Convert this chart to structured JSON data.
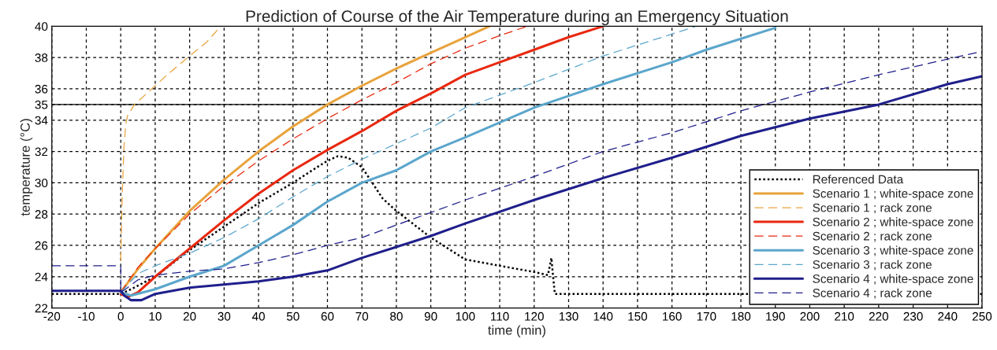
{
  "chart_data": {
    "type": "line",
    "title": "Prediction of Course of the Air Temperature during an Emergency Situation",
    "xlabel": "time (min)",
    "ylabel": "temperature (°C)",
    "xlim": [
      -20,
      250
    ],
    "xticks": [
      -20,
      -10,
      0,
      10,
      20,
      30,
      40,
      50,
      60,
      70,
      80,
      90,
      100,
      110,
      120,
      130,
      140,
      150,
      160,
      170,
      180,
      190,
      200,
      210,
      220,
      230,
      240,
      250
    ],
    "ylim": [
      22,
      40
    ],
    "yticks": [
      22,
      24,
      26,
      28,
      30,
      32,
      34,
      35,
      36,
      38,
      40
    ],
    "grid": true,
    "legend": "bottom right",
    "ref_lines": [
      {
        "axis": "y",
        "value": 35,
        "color": "#000000",
        "line_style": "solid"
      }
    ],
    "series": [
      {
        "name": "Referenced Data",
        "color": "#000000",
        "line_style": "dotted",
        "x": [
          -20,
          0,
          3,
          10,
          20,
          30,
          40,
          50,
          57,
          60,
          63,
          66,
          70,
          73,
          76,
          80,
          90,
          100,
          110,
          120,
          124,
          125,
          125.5,
          126,
          150,
          250
        ],
        "values": [
          22.9,
          22.9,
          23.2,
          24.0,
          25.7,
          27.2,
          28.7,
          30.0,
          31.0,
          31.4,
          31.7,
          31.6,
          31.0,
          30.0,
          29.0,
          28.2,
          26.5,
          25.1,
          24.7,
          24.3,
          24.1,
          25.2,
          24.0,
          22.9,
          22.9,
          22.9
        ]
      },
      {
        "name": "Scenario 1 ; white-space zone",
        "color": "#e8a33d",
        "line_style": "solid",
        "x": [
          0,
          5,
          10,
          20,
          30,
          40,
          50,
          60,
          70,
          80,
          90,
          100,
          107
        ],
        "values": [
          23.0,
          24.5,
          25.8,
          28.2,
          30.2,
          32.0,
          33.6,
          35.0,
          36.2,
          37.3,
          38.3,
          39.3,
          40.0
        ]
      },
      {
        "name": "Scenario 1 ; rack zone",
        "color": "#e8a33d",
        "line_style": "dashed",
        "x": [
          0,
          0.3,
          0.7,
          1,
          1.5,
          2,
          4,
          9,
          14,
          20,
          25,
          29
        ],
        "values": [
          25.0,
          28.0,
          31.0,
          32.5,
          33.8,
          34.3,
          35.0,
          36.0,
          37.0,
          38.1,
          39.0,
          40.0
        ]
      },
      {
        "name": "Scenario 2 ; white-space zone",
        "color": "#e8280f",
        "line_style": "solid",
        "x": [
          0,
          2,
          5,
          10,
          20,
          30,
          40,
          50,
          60,
          70,
          80,
          90,
          100,
          110,
          120,
          130,
          140
        ],
        "values": [
          22.9,
          22.7,
          23.0,
          24.0,
          25.8,
          27.6,
          29.3,
          30.8,
          32.1,
          33.3,
          34.6,
          35.7,
          36.9,
          37.7,
          38.5,
          39.3,
          40.0
        ]
      },
      {
        "name": "Scenario 2 ; rack zone",
        "color": "#e8280f",
        "line_style": "dashed",
        "x": [
          0,
          5,
          10,
          20,
          30,
          40,
          50,
          60,
          70,
          80,
          90,
          100,
          110,
          118
        ],
        "values": [
          23.0,
          24.6,
          25.8,
          28.0,
          29.8,
          31.4,
          32.8,
          34.1,
          35.3,
          36.4,
          37.6,
          38.6,
          39.4,
          40.0
        ]
      },
      {
        "name": "Scenario 3 ; white-space zone",
        "color": "#5ba6cc",
        "line_style": "solid",
        "x": [
          0,
          3,
          10,
          20,
          30,
          40,
          50,
          60,
          70,
          80,
          90,
          100,
          120,
          140,
          160,
          170,
          180,
          190
        ],
        "values": [
          23.0,
          22.8,
          23.2,
          24.0,
          24.7,
          26.0,
          27.3,
          28.8,
          30.0,
          30.8,
          32.0,
          32.9,
          34.8,
          36.3,
          37.7,
          38.5,
          39.2,
          39.9
        ]
      },
      {
        "name": "Scenario 3 ; rack zone",
        "color": "#5ba6cc",
        "line_style": "dashed",
        "x": [
          0,
          5,
          10,
          20,
          30,
          40,
          50,
          60,
          70,
          80,
          90,
          100,
          120,
          140,
          160,
          167
        ],
        "values": [
          23.0,
          24.2,
          24.7,
          25.5,
          26.5,
          27.7,
          29.1,
          30.4,
          31.5,
          32.5,
          33.5,
          34.8,
          36.4,
          38.1,
          39.5,
          40.0
        ]
      },
      {
        "name": "Scenario 4 ; white-space zone",
        "color": "#1f1f8c",
        "line_style": "solid",
        "x": [
          -20,
          0,
          1,
          3,
          6,
          10,
          20,
          30,
          40,
          50,
          60,
          70,
          80,
          90,
          100,
          120,
          140,
          160,
          180,
          200,
          220,
          240,
          250
        ],
        "values": [
          23.1,
          23.1,
          22.8,
          22.5,
          22.5,
          22.9,
          23.3,
          23.5,
          23.7,
          24.0,
          24.4,
          25.2,
          25.9,
          26.6,
          27.4,
          28.9,
          30.3,
          31.6,
          33.0,
          34.1,
          35.0,
          36.3,
          36.8
        ]
      },
      {
        "name": "Scenario 4 ; rack zone",
        "color": "#1f1f8c",
        "line_style": "dashed",
        "x": [
          -20,
          0,
          0,
          2,
          5,
          10,
          20,
          30,
          40,
          50,
          60,
          70,
          80,
          100,
          120,
          140,
          160,
          180,
          200,
          220,
          240,
          250
        ],
        "values": [
          24.7,
          24.7,
          23.0,
          23.3,
          23.8,
          24.1,
          24.35,
          24.5,
          24.9,
          25.4,
          26.0,
          26.5,
          27.3,
          28.9,
          30.4,
          32.0,
          33.2,
          34.6,
          35.8,
          36.9,
          37.9,
          38.4
        ]
      }
    ]
  }
}
